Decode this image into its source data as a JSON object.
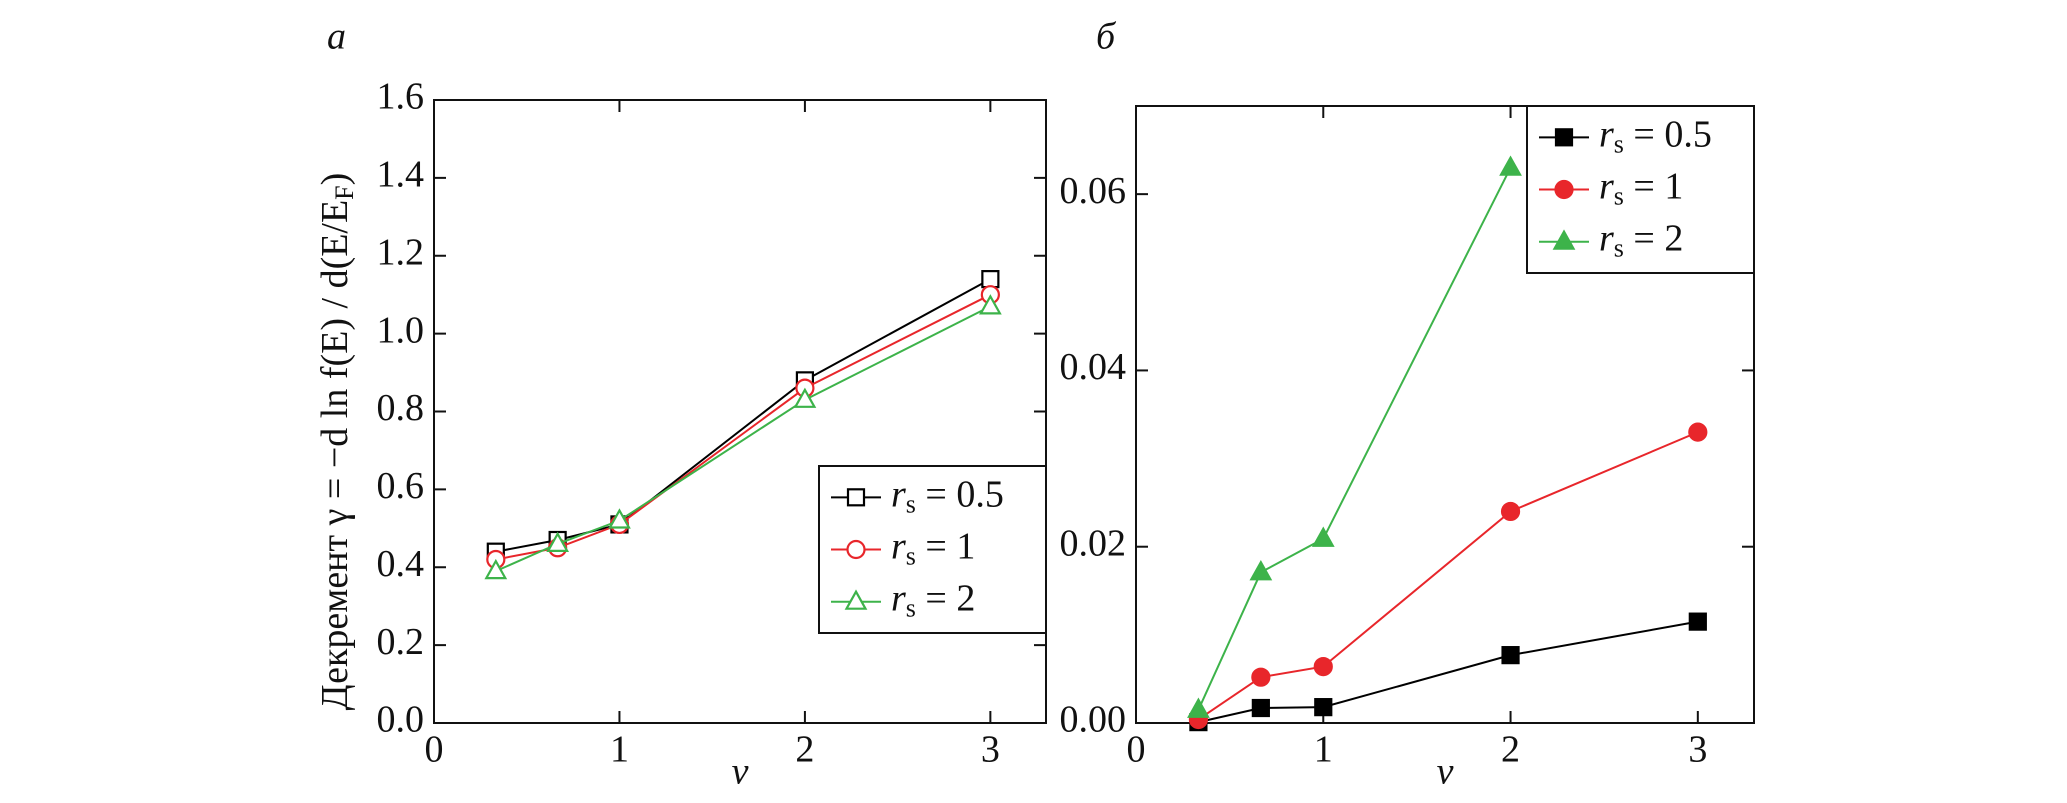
{
  "chart_data": [
    {
      "type": "line",
      "panel": "a",
      "ylabel": "Декремент γ = −d ln f(E) / d(E/E",
      "ylabel_sub": "F",
      "ylabel_end": ")",
      "xlabel": "ν",
      "x": [
        0.3333,
        0.6667,
        1,
        2,
        3
      ],
      "series": [
        {
          "name": "rs = 0.5",
          "color": "#000000",
          "marker": "square",
          "filled": false,
          "values": [
            0.44,
            0.47,
            0.51,
            0.88,
            1.14
          ]
        },
        {
          "name": "rs = 1",
          "color": "#e8262b",
          "marker": "circle",
          "filled": false,
          "values": [
            0.42,
            0.45,
            0.51,
            0.86,
            1.1
          ]
        },
        {
          "name": "rs = 2",
          "color": "#3db34a",
          "marker": "triangle",
          "filled": false,
          "values": [
            0.39,
            0.46,
            0.52,
            0.83,
            1.07
          ]
        }
      ],
      "xlim": [
        0,
        3.3
      ],
      "xticks": [
        0,
        1,
        2,
        3
      ],
      "ylim": [
        0,
        1.6
      ],
      "yticks": [
        {
          "value": 0,
          "label": "0.0"
        },
        0.2,
        0.4,
        0.6,
        0.8,
        {
          "value": 1,
          "label": "1.0"
        },
        1.2,
        1.4,
        1.6
      ],
      "legend": "lower right"
    },
    {
      "type": "line",
      "panel": "б",
      "xlabel": "ν",
      "x": [
        0.3333,
        0.6667,
        1,
        2,
        3
      ],
      "series": [
        {
          "name": "rs = 0.5",
          "color": "#000000",
          "marker": "square",
          "filled": true,
          "values": [
            0.0001,
            0.0017,
            0.0018,
            0.0077,
            0.0115
          ]
        },
        {
          "name": "rs = 1",
          "color": "#e8262b",
          "marker": "circle",
          "filled": true,
          "values": [
            0.0004,
            0.0052,
            0.0064,
            0.024,
            0.033
          ]
        },
        {
          "name": "rs = 2",
          "color": "#3db34a",
          "marker": "triangle",
          "filled": true,
          "values": [
            0.0015,
            0.0171,
            0.0209,
            0.063,
            null
          ]
        }
      ],
      "xlim": [
        0,
        3.3
      ],
      "xticks": [
        0,
        1,
        2,
        3
      ],
      "ylim": [
        0,
        0.07
      ],
      "yticks": [
        {
          "value": 0,
          "label": "0.00"
        },
        0.02,
        0.04,
        0.06
      ],
      "legend": "upper right"
    }
  ]
}
